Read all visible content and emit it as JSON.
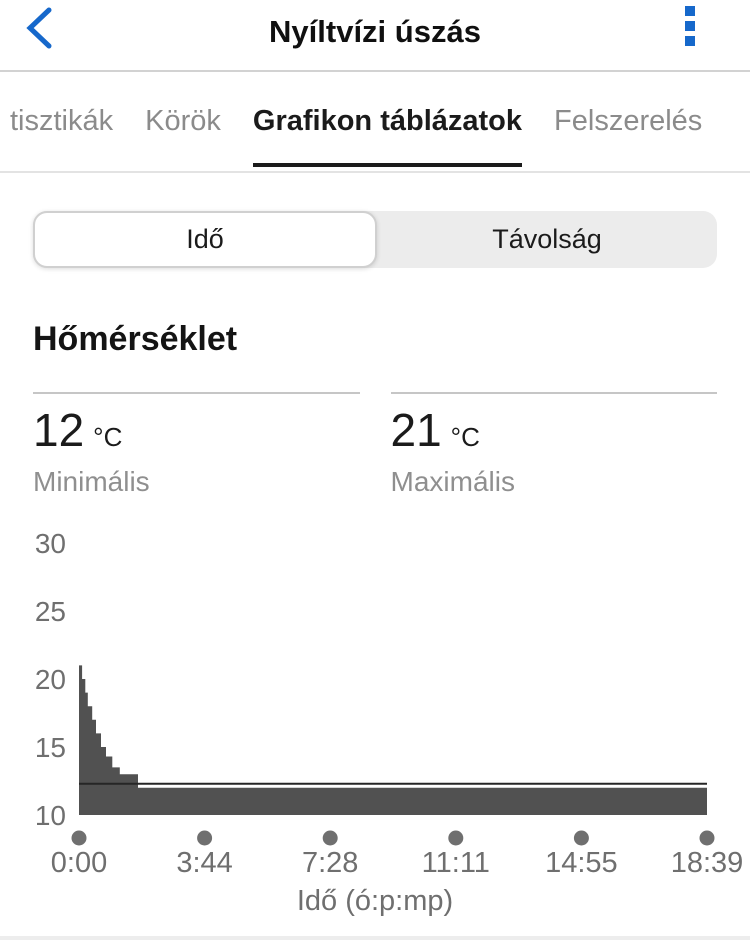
{
  "header": {
    "title": "Nyíltvízi úszás",
    "back_icon": "chevron-left",
    "menu_icon": "kebab-vertical-squares"
  },
  "tabs": {
    "items": [
      {
        "label": "tisztikák",
        "active": false
      },
      {
        "label": "Körök",
        "active": false
      },
      {
        "label": "Grafikon táblázatok",
        "active": true
      },
      {
        "label": "Felszerelés",
        "active": false
      }
    ]
  },
  "segmented": {
    "options": [
      "Idő",
      "Távolság"
    ],
    "selected": "Idő"
  },
  "section": {
    "title": "Hőmérséklet"
  },
  "stats": {
    "min": {
      "value": "12",
      "unit": "°C",
      "label": "Minimális"
    },
    "max": {
      "value": "21",
      "unit": "°C",
      "label": "Maximális"
    }
  },
  "chart_data": {
    "type": "area",
    "title": "Hőmérséklet",
    "xlabel": "Idő (ó:p:mp)",
    "ylabel": "",
    "ylim": [
      10,
      32
    ],
    "yticks": [
      10,
      15,
      20,
      25,
      30
    ],
    "xticks": [
      "0:00",
      "3:44",
      "7:28",
      "11:11",
      "14:55",
      "18:39"
    ],
    "grid": false,
    "legend": false,
    "series": [
      {
        "name": "Hőmérséklet (°C)",
        "steps": [
          {
            "t0": 0.0,
            "t1": 0.005,
            "temp": 21
          },
          {
            "t0": 0.005,
            "t1": 0.01,
            "temp": 20
          },
          {
            "t0": 0.01,
            "t1": 0.014,
            "temp": 19
          },
          {
            "t0": 0.014,
            "t1": 0.021,
            "temp": 18
          },
          {
            "t0": 0.021,
            "t1": 0.027,
            "temp": 17
          },
          {
            "t0": 0.027,
            "t1": 0.035,
            "temp": 16
          },
          {
            "t0": 0.035,
            "t1": 0.043,
            "temp": 15
          },
          {
            "t0": 0.043,
            "t1": 0.053,
            "temp": 14.3
          },
          {
            "t0": 0.053,
            "t1": 0.065,
            "temp": 13.5
          },
          {
            "t0": 0.065,
            "t1": 0.094,
            "temp": 13
          },
          {
            "t0": 0.094,
            "t1": 1.0,
            "temp": 12
          }
        ]
      }
    ],
    "avg_line": 12.3,
    "min_temp": 12,
    "max_temp": 21
  },
  "colors": {
    "accent_blue": "#1668cb",
    "chart_fill": "#515151",
    "avg_line": "#262626",
    "axis_text": "#6f6f6f",
    "tick_dot": "#6f6f6f",
    "tab_inactive": "#8b8b8b",
    "tab_active": "#1b1b1b"
  }
}
